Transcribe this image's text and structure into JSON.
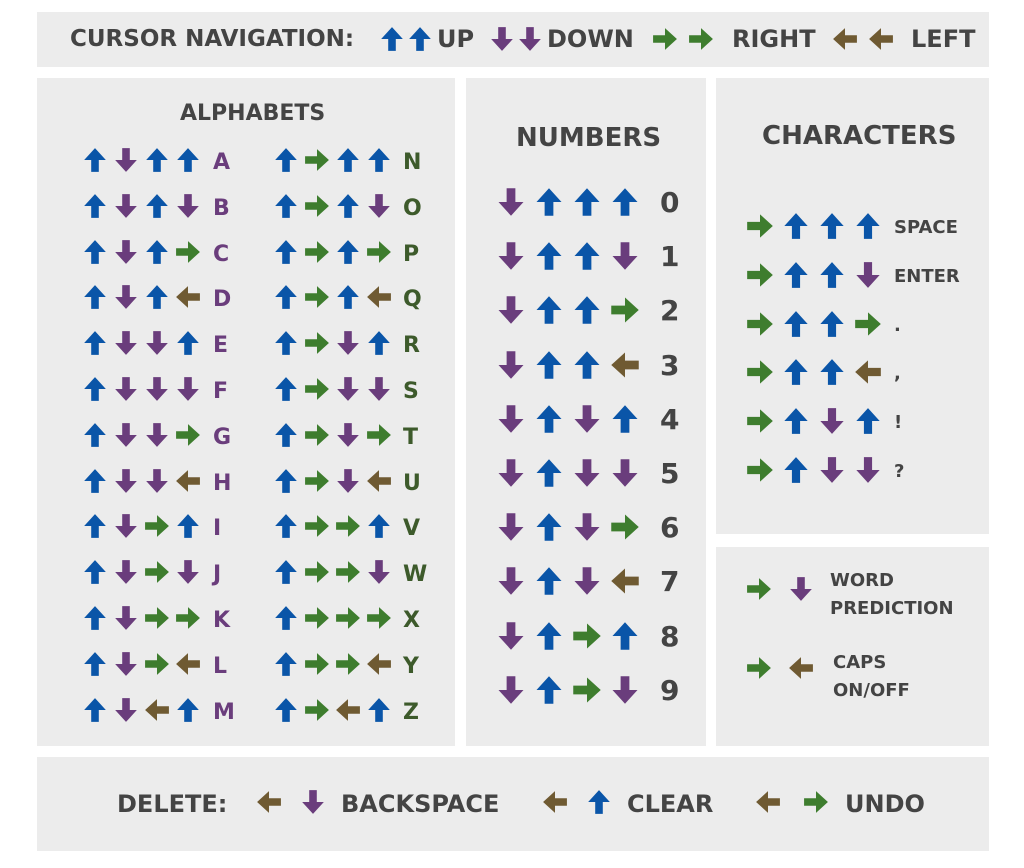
{
  "colors": {
    "up": "#0a55a8",
    "down": "#6a3d7c",
    "right": "#3e7d2e",
    "left": "#6f5a32",
    "panel": "#ececec",
    "heading": "#444444",
    "alpha_left_label": "#6a3d7c",
    "alpha_right_label": "#3d5a2b"
  },
  "navigation": {
    "title": "CURSOR NAVIGATION:",
    "items": [
      {
        "label": "UP",
        "arrows": [
          "up",
          "up"
        ]
      },
      {
        "label": "DOWN",
        "arrows": [
          "down",
          "down"
        ]
      },
      {
        "label": "RIGHT",
        "arrows": [
          "right",
          "right"
        ]
      },
      {
        "label": "LEFT",
        "arrows": [
          "left",
          "left"
        ]
      }
    ]
  },
  "alphabets": {
    "title": "ALPHABETS",
    "left": [
      {
        "label": "A",
        "arrows": [
          "up",
          "down",
          "up",
          "up"
        ]
      },
      {
        "label": "B",
        "arrows": [
          "up",
          "down",
          "up",
          "down"
        ]
      },
      {
        "label": "C",
        "arrows": [
          "up",
          "down",
          "up",
          "right"
        ]
      },
      {
        "label": "D",
        "arrows": [
          "up",
          "down",
          "up",
          "left"
        ]
      },
      {
        "label": "E",
        "arrows": [
          "up",
          "down",
          "down",
          "up"
        ]
      },
      {
        "label": "F",
        "arrows": [
          "up",
          "down",
          "down",
          "down"
        ]
      },
      {
        "label": "G",
        "arrows": [
          "up",
          "down",
          "down",
          "right"
        ]
      },
      {
        "label": "H",
        "arrows": [
          "up",
          "down",
          "down",
          "left"
        ]
      },
      {
        "label": "I",
        "arrows": [
          "up",
          "down",
          "right",
          "up"
        ]
      },
      {
        "label": "J",
        "arrows": [
          "up",
          "down",
          "right",
          "down"
        ]
      },
      {
        "label": "K",
        "arrows": [
          "up",
          "down",
          "right",
          "right"
        ]
      },
      {
        "label": "L",
        "arrows": [
          "up",
          "down",
          "right",
          "left"
        ]
      },
      {
        "label": "M",
        "arrows": [
          "up",
          "down",
          "left",
          "up"
        ]
      }
    ],
    "right": [
      {
        "label": "N",
        "arrows": [
          "up",
          "right",
          "up",
          "up"
        ]
      },
      {
        "label": "O",
        "arrows": [
          "up",
          "right",
          "up",
          "down"
        ]
      },
      {
        "label": "P",
        "arrows": [
          "up",
          "right",
          "up",
          "right"
        ]
      },
      {
        "label": "Q",
        "arrows": [
          "up",
          "right",
          "up",
          "left"
        ]
      },
      {
        "label": "R",
        "arrows": [
          "up",
          "right",
          "down",
          "up"
        ]
      },
      {
        "label": "S",
        "arrows": [
          "up",
          "right",
          "down",
          "down"
        ]
      },
      {
        "label": "T",
        "arrows": [
          "up",
          "right",
          "down",
          "right"
        ]
      },
      {
        "label": "U",
        "arrows": [
          "up",
          "right",
          "down",
          "left"
        ]
      },
      {
        "label": "V",
        "arrows": [
          "up",
          "right",
          "right",
          "up"
        ]
      },
      {
        "label": "W",
        "arrows": [
          "up",
          "right",
          "right",
          "down"
        ]
      },
      {
        "label": "X",
        "arrows": [
          "up",
          "right",
          "right",
          "right"
        ]
      },
      {
        "label": "Y",
        "arrows": [
          "up",
          "right",
          "right",
          "left"
        ]
      },
      {
        "label": "Z",
        "arrows": [
          "up",
          "right",
          "left",
          "up"
        ]
      }
    ]
  },
  "numbers": {
    "title": "NUMBERS",
    "items": [
      {
        "label": "0",
        "arrows": [
          "down",
          "up",
          "up",
          "up"
        ]
      },
      {
        "label": "1",
        "arrows": [
          "down",
          "up",
          "up",
          "down"
        ]
      },
      {
        "label": "2",
        "arrows": [
          "down",
          "up",
          "up",
          "right"
        ]
      },
      {
        "label": "3",
        "arrows": [
          "down",
          "up",
          "up",
          "left"
        ]
      },
      {
        "label": "4",
        "arrows": [
          "down",
          "up",
          "down",
          "up"
        ]
      },
      {
        "label": "5",
        "arrows": [
          "down",
          "up",
          "down",
          "down"
        ]
      },
      {
        "label": "6",
        "arrows": [
          "down",
          "up",
          "down",
          "right"
        ]
      },
      {
        "label": "7",
        "arrows": [
          "down",
          "up",
          "down",
          "left"
        ]
      },
      {
        "label": "8",
        "arrows": [
          "down",
          "up",
          "right",
          "up"
        ]
      },
      {
        "label": "9",
        "arrows": [
          "down",
          "up",
          "right",
          "down"
        ]
      }
    ]
  },
  "characters": {
    "title": "CHARACTERS",
    "items": [
      {
        "label": "SPACE",
        "arrows": [
          "right",
          "up",
          "up",
          "up"
        ]
      },
      {
        "label": "ENTER",
        "arrows": [
          "right",
          "up",
          "up",
          "down"
        ]
      },
      {
        "label": ".",
        "arrows": [
          "right",
          "up",
          "up",
          "right"
        ]
      },
      {
        "label": ",",
        "arrows": [
          "right",
          "up",
          "up",
          "left"
        ]
      },
      {
        "label": "!",
        "arrows": [
          "right",
          "up",
          "down",
          "up"
        ]
      },
      {
        "label": "?",
        "arrows": [
          "right",
          "up",
          "down",
          "down"
        ]
      }
    ]
  },
  "special": {
    "items": [
      {
        "label_line1": "WORD",
        "label_line2": "PREDICTION",
        "arrows": [
          "right",
          "down"
        ]
      },
      {
        "label_line1": "CAPS",
        "label_line2": "ON/OFF",
        "arrows": [
          "right",
          "left"
        ]
      }
    ]
  },
  "delete": {
    "title": "DELETE:",
    "items": [
      {
        "label": "BACKSPACE",
        "arrows": [
          "left",
          "down"
        ]
      },
      {
        "label": "CLEAR",
        "arrows": [
          "left",
          "up"
        ]
      },
      {
        "label": "UNDO",
        "arrows": [
          "left",
          "right"
        ]
      }
    ]
  }
}
